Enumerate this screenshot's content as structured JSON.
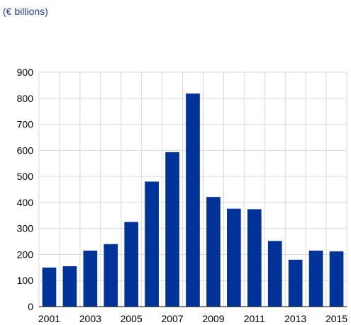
{
  "units_label": "(€ billions)",
  "colors": {
    "bar": "#003399",
    "grid": "#d9d9d9",
    "axis": "#000000",
    "units_text": "#1a3fa0"
  },
  "chart_data": {
    "type": "bar",
    "title": "",
    "xlabel": "",
    "ylabel": "",
    "categories": [
      "2001",
      "2002",
      "2003",
      "2004",
      "2005",
      "2006",
      "2007",
      "2008",
      "2009",
      "2010",
      "2011",
      "2012",
      "2013",
      "2014",
      "2015"
    ],
    "values": [
      150,
      155,
      215,
      240,
      325,
      480,
      593,
      818,
      421,
      376,
      374,
      252,
      180,
      215,
      212
    ],
    "ylim": [
      0,
      900
    ],
    "y_ticks": [
      0,
      100,
      200,
      300,
      400,
      500,
      600,
      700,
      800,
      900
    ],
    "x_tick_labels": [
      "2001",
      "2003",
      "2005",
      "2007",
      "2009",
      "2011",
      "2013",
      "2015"
    ],
    "grid": true,
    "legend": "none"
  }
}
